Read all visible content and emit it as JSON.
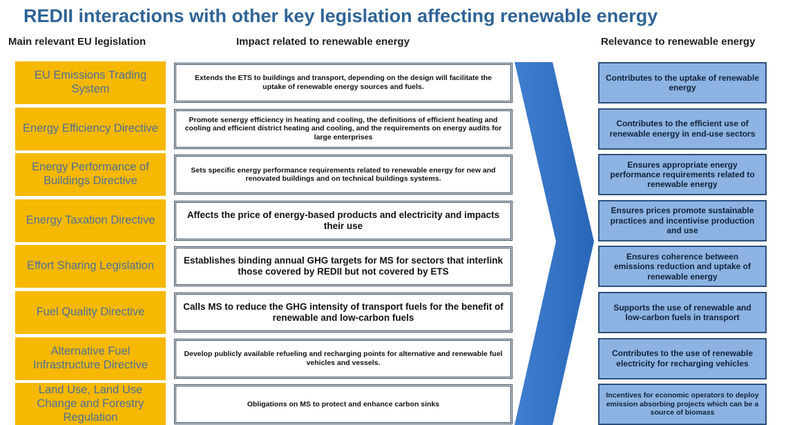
{
  "title": "REDII interactions with other key legislation affecting renewable energy",
  "columns": [
    "Main relevant EU legislation",
    "Impact related to renewable energy",
    "Relevance to renewable energy"
  ],
  "rows": [
    {
      "legislation": "EU Emissions Trading System",
      "impact": "Extends the ETS to buildings and transport, depending on the design will facilitate the uptake of renewable energy sources and fuels.",
      "relevance": "Contributes to the uptake of renewable energy"
    },
    {
      "legislation": "Energy Efficiency Directive",
      "impact": "Promote senergy efficiency in heating and cooling, the definitions of efficient heating and cooling and efficient district heating and cooling, and the requirements on energy audits for large enterprises",
      "relevance": "Contributes to the efficient use of renewable energy in end-use sectors"
    },
    {
      "legislation": "Energy Performance of Buildings Directive",
      "impact": "Sets specific energy performance requirements related to renewable energy for new and renovated buildings and on technical buildings systems.",
      "relevance": "Ensures appropriate energy performance requirements related to renewable energy"
    },
    {
      "legislation": "Energy Taxation Directive",
      "impact": "Affects the price of energy-based products and electricity and impacts their use",
      "relevance": "Ensures prices promote sustainable practices and incentivise production and use"
    },
    {
      "legislation": "Effort Sharing Legislation",
      "impact": "Establishes binding annual GHG targets for MS for sectors that interlink those covered by REDII but not covered by ETS",
      "relevance": "Ensures coherence between emissions reduction and uptake of renewable energy"
    },
    {
      "legislation": "Fuel Quality Directive",
      "impact": "Calls MS to reduce the GHG intensity of transport fuels for the benefit of renewable and low-carbon fuels",
      "relevance": "Supports the use of renewable and low-carbon fuels in transport"
    },
    {
      "legislation": "Alternative Fuel Infrastructure Directive",
      "impact": "Develop publicly available refueling and recharging points for alternative and renewable fuel vehicles and vessels.",
      "relevance": "Contributes to the use of renewable electricity for recharging vehicles"
    },
    {
      "legislation": "Land Use, Land Use Change and Forestry Regulation",
      "impact": "Obligations on MS to protect and enhance carbon sinks",
      "relevance": "Incentives for economic operators to deploy emission absorbing projects which can be a source of biomass"
    }
  ]
}
